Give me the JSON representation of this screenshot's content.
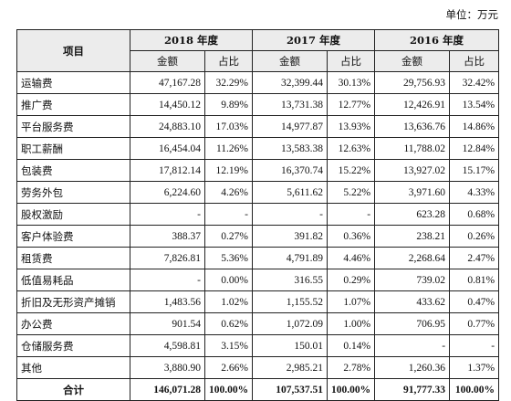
{
  "unit": "单位：万元",
  "header": {
    "item": "项目",
    "years": [
      "2018 年度",
      "2017 年度",
      "2016 年度"
    ],
    "amount": "金额",
    "ratio": "占比"
  },
  "rows": [
    {
      "label": "运输费",
      "values": [
        "47,167.28",
        "32.29%",
        "32,399.44",
        "30.13%",
        "29,756.93",
        "32.42%"
      ]
    },
    {
      "label": "推广费",
      "values": [
        "14,450.12",
        "9.89%",
        "13,731.38",
        "12.77%",
        "12,426.91",
        "13.54%"
      ]
    },
    {
      "label": "平台服务费",
      "values": [
        "24,883.10",
        "17.03%",
        "14,977.87",
        "13.93%",
        "13,636.76",
        "14.86%"
      ]
    },
    {
      "label": "职工薪酬",
      "values": [
        "16,454.04",
        "11.26%",
        "13,583.38",
        "12.63%",
        "11,788.02",
        "12.84%"
      ]
    },
    {
      "label": "包装费",
      "values": [
        "17,812.14",
        "12.19%",
        "16,370.74",
        "15.22%",
        "13,927.02",
        "15.17%"
      ]
    },
    {
      "label": "劳务外包",
      "values": [
        "6,224.60",
        "4.26%",
        "5,611.62",
        "5.22%",
        "3,971.60",
        "4.33%"
      ]
    },
    {
      "label": "股权激励",
      "values": [
        "-",
        "-",
        "-",
        "-",
        "623.28",
        "0.68%"
      ]
    },
    {
      "label": "客户体验费",
      "values": [
        "388.37",
        "0.27%",
        "391.82",
        "0.36%",
        "238.21",
        "0.26%"
      ]
    },
    {
      "label": "租赁费",
      "values": [
        "7,826.81",
        "5.36%",
        "4,791.89",
        "4.46%",
        "2,268.64",
        "2.47%"
      ]
    },
    {
      "label": "低值易耗品",
      "values": [
        "-",
        "0.00%",
        "316.55",
        "0.29%",
        "739.02",
        "0.81%"
      ]
    },
    {
      "label": "折旧及无形资产摊销",
      "values": [
        "1,483.56",
        "1.02%",
        "1,155.52",
        "1.07%",
        "433.62",
        "0.47%"
      ]
    },
    {
      "label": "办公费",
      "values": [
        "901.54",
        "0.62%",
        "1,072.09",
        "1.00%",
        "706.95",
        "0.77%"
      ]
    },
    {
      "label": "仓储服务费",
      "values": [
        "4,598.81",
        "3.15%",
        "150.01",
        "0.14%",
        "-",
        "-"
      ]
    },
    {
      "label": "其他",
      "values": [
        "3,880.90",
        "2.66%",
        "2,985.21",
        "2.78%",
        "1,260.36",
        "1.37%"
      ]
    }
  ],
  "total": {
    "label": "合计",
    "values": [
      "146,071.28",
      "100.00%",
      "107,537.51",
      "100.00%",
      "91,777.33",
      "100.00%"
    ]
  }
}
